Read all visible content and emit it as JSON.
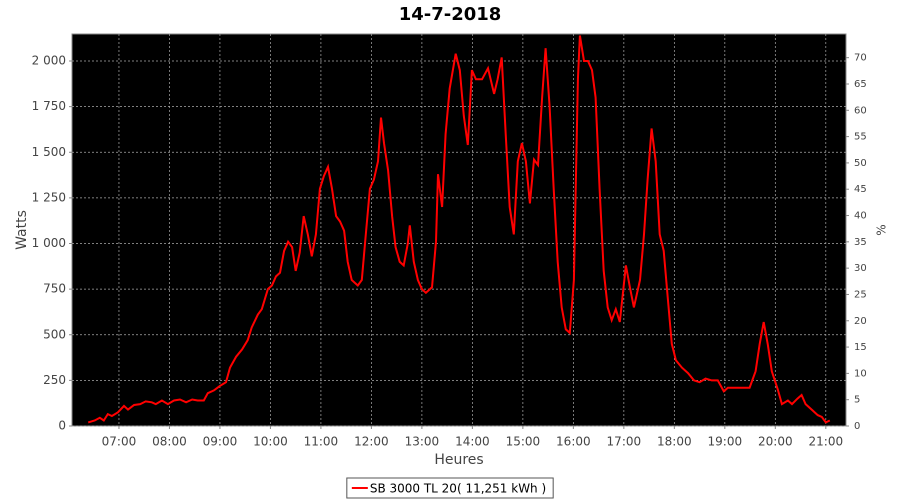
{
  "chart_data": {
    "type": "line",
    "title": "14-7-2018",
    "x_label": "Heures",
    "y_label": "Watts",
    "y2_label": "%",
    "background": "#000000",
    "grid": true,
    "x": [
      6.39,
      6.52,
      6.62,
      6.7,
      6.78,
      6.86,
      6.98,
      7.1,
      7.18,
      7.3,
      7.42,
      7.53,
      7.65,
      7.73,
      7.85,
      7.97,
      8.09,
      8.21,
      8.33,
      8.45,
      8.56,
      8.68,
      8.76,
      8.88,
      9.0,
      9.12,
      9.2,
      9.32,
      9.44,
      9.55,
      9.63,
      9.75,
      9.83,
      9.95,
      10.03,
      10.11,
      10.19,
      10.27,
      10.35,
      10.43,
      10.5,
      10.58,
      10.66,
      10.74,
      10.82,
      10.9,
      10.98,
      11.06,
      11.14,
      11.22,
      11.3,
      11.38,
      11.46,
      11.53,
      11.61,
      11.73,
      11.81,
      11.89,
      11.97,
      12.05,
      12.13,
      12.19,
      12.25,
      12.33,
      12.41,
      12.48,
      12.56,
      12.64,
      12.72,
      12.76,
      12.84,
      12.92,
      13.0,
      13.08,
      13.2,
      13.28,
      13.32,
      13.4,
      13.47,
      13.55,
      13.67,
      13.75,
      13.83,
      13.91,
      13.99,
      14.07,
      14.19,
      14.31,
      14.43,
      14.5,
      14.58,
      14.66,
      14.74,
      14.82,
      14.9,
      14.98,
      15.06,
      15.14,
      15.22,
      15.3,
      15.38,
      15.45,
      15.53,
      15.61,
      15.69,
      15.77,
      15.85,
      15.93,
      16.01,
      16.09,
      16.13,
      16.21,
      16.29,
      16.37,
      16.44,
      16.52,
      16.6,
      16.68,
      16.76,
      16.84,
      16.92,
      17.04,
      17.12,
      17.2,
      17.32,
      17.4,
      17.47,
      17.55,
      17.63,
      17.71,
      17.79,
      17.87,
      17.95,
      18.03,
      18.15,
      18.27,
      18.39,
      18.5,
      18.62,
      18.74,
      18.86,
      18.98,
      19.06,
      19.18,
      19.3,
      19.49,
      19.61,
      19.69,
      19.77,
      19.85,
      19.93,
      20.05,
      20.13,
      20.25,
      20.33,
      20.44,
      20.52,
      20.6,
      20.72,
      20.84,
      20.92,
      21.0,
      21.08
    ],
    "series": [
      {
        "name": "SB 3000 TL 20( 11,251 kWh )",
        "color": "#ff0000",
        "values": [
          20,
          30,
          45,
          30,
          65,
          55,
          75,
          110,
          90,
          115,
          120,
          135,
          130,
          120,
          140,
          120,
          140,
          145,
          130,
          145,
          140,
          140,
          180,
          195,
          220,
          240,
          320,
          380,
          420,
          470,
          540,
          610,
          640,
          750,
          770,
          820,
          840,
          960,
          1010,
          980,
          850,
          950,
          1150,
          1050,
          930,
          1050,
          1300,
          1370,
          1420,
          1300,
          1150,
          1120,
          1070,
          900,
          800,
          770,
          800,
          1050,
          1300,
          1350,
          1450,
          1690,
          1550,
          1400,
          1150,
          980,
          900,
          880,
          1000,
          1100,
          900,
          800,
          750,
          730,
          760,
          1010,
          1380,
          1200,
          1600,
          1850,
          2040,
          1950,
          1700,
          1540,
          1950,
          1900,
          1900,
          1960,
          1820,
          1900,
          2020,
          1600,
          1200,
          1050,
          1450,
          1550,
          1450,
          1220,
          1460,
          1430,
          1800,
          2070,
          1750,
          1300,
          900,
          650,
          530,
          510,
          800,
          1900,
          2140,
          2000,
          2000,
          1950,
          1800,
          1300,
          850,
          650,
          580,
          640,
          570,
          880,
          760,
          650,
          800,
          1050,
          1350,
          1630,
          1450,
          1050,
          960,
          700,
          450,
          360,
          320,
          290,
          250,
          240,
          260,
          250,
          250,
          190,
          210,
          210,
          210,
          210,
          300,
          450,
          570,
          450,
          300,
          200,
          120,
          140,
          120,
          150,
          170,
          120,
          90,
          60,
          50,
          20,
          30
        ]
      }
    ],
    "xlim": [
      6.07,
      21.4
    ],
    "xticks": [
      {
        "value": 7,
        "label": "07:00"
      },
      {
        "value": 8,
        "label": "08:00"
      },
      {
        "value": 9,
        "label": "09:00"
      },
      {
        "value": 10,
        "label": "10:00"
      },
      {
        "value": 11,
        "label": "11:00"
      },
      {
        "value": 12,
        "label": "12:00"
      },
      {
        "value": 13,
        "label": "13:00"
      },
      {
        "value": 14,
        "label": "14:00"
      },
      {
        "value": 15,
        "label": "15:00"
      },
      {
        "value": 16,
        "label": "16:00"
      },
      {
        "value": 17,
        "label": "17:00"
      },
      {
        "value": 18,
        "label": "18:00"
      },
      {
        "value": 19,
        "label": "19:00"
      },
      {
        "value": 20,
        "label": "20:00"
      },
      {
        "value": 21,
        "label": "21:00"
      }
    ],
    "ylim": [
      0,
      2148
    ],
    "yticks": [
      0,
      250,
      500,
      750,
      {
        "value": 1000,
        "label": "1 000"
      },
      {
        "value": 1250,
        "label": "1 250"
      },
      {
        "value": 1500,
        "label": "1 500"
      },
      {
        "value": 1750,
        "label": "1 750"
      },
      {
        "value": 2000,
        "label": "2 000"
      }
    ],
    "y2lim": [
      0,
      74.5
    ],
    "y2ticks": [
      0,
      5,
      10,
      15,
      20,
      25,
      30,
      35,
      40,
      45,
      50,
      55,
      60,
      65,
      70
    ]
  }
}
